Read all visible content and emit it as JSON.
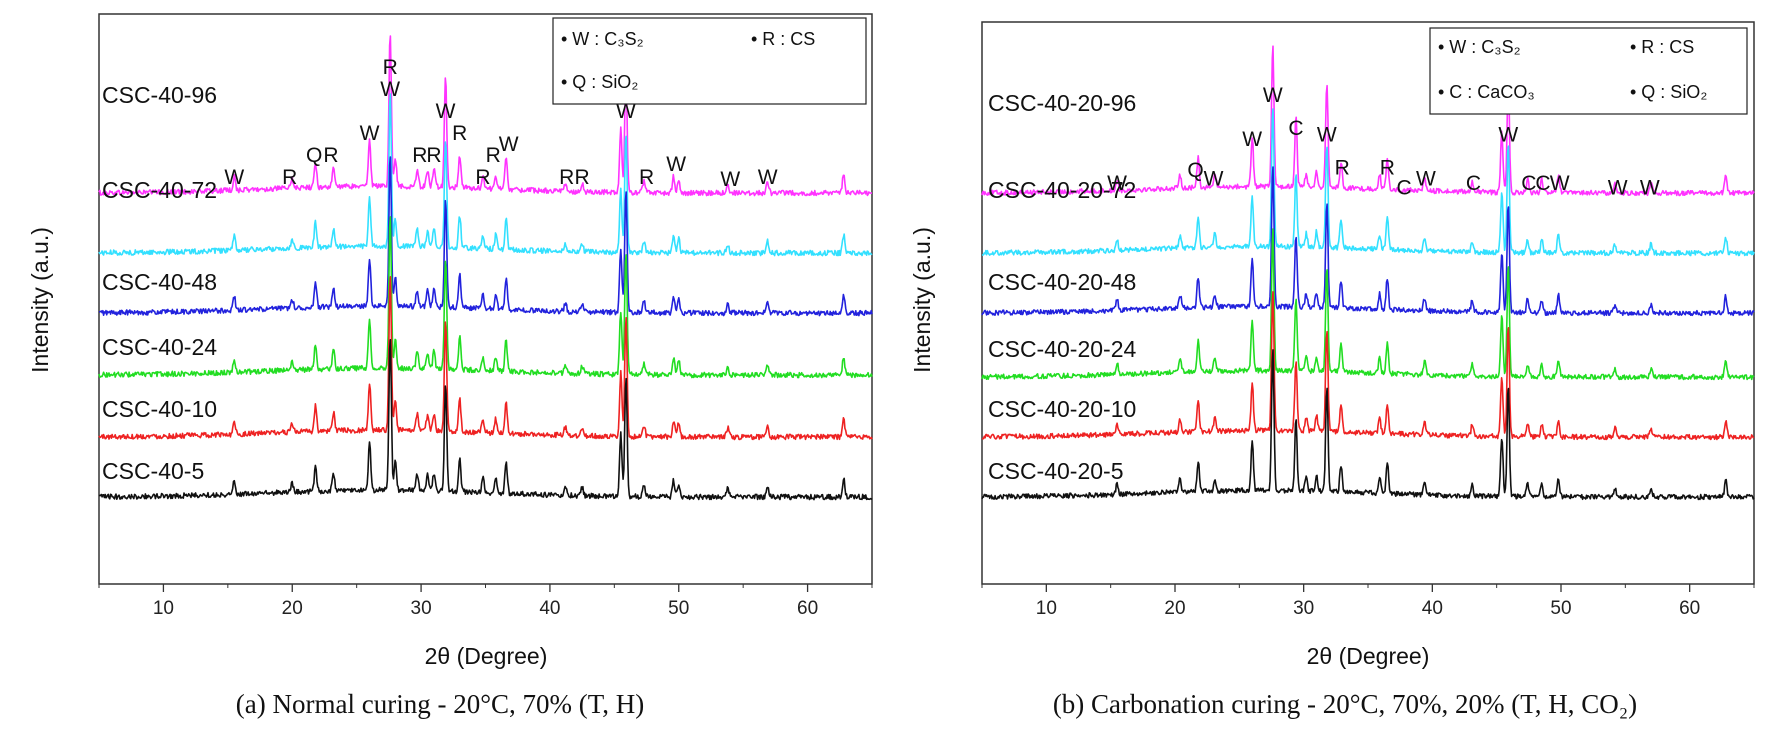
{
  "chart_data": [
    {
      "type": "line",
      "id": "a",
      "caption": "(a) Normal curing - 20°C, 70% (T, H)",
      "xlabel": "2θ (Degree)",
      "ylabel": "Intensity (a.u.)",
      "xlim": [
        5,
        65
      ],
      "xticks": [
        10,
        20,
        30,
        40,
        50,
        60
      ],
      "legend": [
        {
          "text": "• W : C₃S₂"
        },
        {
          "text": "• R : CS"
        },
        {
          "text": "• Q : SiO₂"
        }
      ],
      "series": [
        {
          "name": "CSC-40-96",
          "color": "#ff33ff",
          "baseline": 0.0,
          "peak_scale": 1.0
        },
        {
          "name": "CSC-40-72",
          "color": "#33e0ff",
          "baseline": 0.0,
          "peak_scale": 1.0
        },
        {
          "name": "CSC-40-48",
          "color": "#2222dd",
          "baseline": 0.0,
          "peak_scale": 1.0
        },
        {
          "name": "CSC-40-24",
          "color": "#22dd22",
          "baseline": 0.0,
          "peak_scale": 1.0
        },
        {
          "name": "CSC-40-10",
          "color": "#ee2222",
          "baseline": 0.0,
          "peak_scale": 1.0
        },
        {
          "name": "CSC-40-5",
          "color": "#111111",
          "baseline": 0.0,
          "peak_scale": 1.0
        }
      ],
      "peaks": [
        {
          "x": 15.5,
          "h": 0.12
        },
        {
          "x": 20.0,
          "h": 0.08
        },
        {
          "x": 21.8,
          "h": 0.22
        },
        {
          "x": 23.2,
          "h": 0.16
        },
        {
          "x": 26.0,
          "h": 0.42
        },
        {
          "x": 27.6,
          "h": 1.35
        },
        {
          "x": 28.0,
          "h": 0.25
        },
        {
          "x": 29.7,
          "h": 0.15
        },
        {
          "x": 30.5,
          "h": 0.14
        },
        {
          "x": 31.0,
          "h": 0.15
        },
        {
          "x": 31.9,
          "h": 0.95
        },
        {
          "x": 33.0,
          "h": 0.28
        },
        {
          "x": 34.8,
          "h": 0.12
        },
        {
          "x": 35.8,
          "h": 0.12
        },
        {
          "x": 36.6,
          "h": 0.28
        },
        {
          "x": 41.2,
          "h": 0.07
        },
        {
          "x": 42.5,
          "h": 0.07
        },
        {
          "x": 45.5,
          "h": 0.55
        },
        {
          "x": 45.9,
          "h": 1.05
        },
        {
          "x": 47.3,
          "h": 0.1
        },
        {
          "x": 49.6,
          "h": 0.14
        },
        {
          "x": 50.0,
          "h": 0.12
        },
        {
          "x": 53.8,
          "h": 0.08
        },
        {
          "x": 56.9,
          "h": 0.1
        },
        {
          "x": 62.8,
          "h": 0.16
        }
      ],
      "annotations": [
        {
          "x": 15.5,
          "text": "W",
          "level": 1
        },
        {
          "x": 19.8,
          "text": "R",
          "level": 1
        },
        {
          "x": 21.7,
          "text": "Q",
          "level": 2
        },
        {
          "x": 23.0,
          "text": "R",
          "level": 2
        },
        {
          "x": 26.0,
          "text": "W",
          "level": 3
        },
        {
          "x": 27.6,
          "text": "R",
          "level": 6
        },
        {
          "x": 27.6,
          "text": "W",
          "level": 5
        },
        {
          "x": 29.9,
          "text": "R",
          "level": 2
        },
        {
          "x": 31.0,
          "text": "R",
          "level": 2
        },
        {
          "x": 31.9,
          "text": "W",
          "level": 4
        },
        {
          "x": 33.0,
          "text": "R",
          "level": 3
        },
        {
          "x": 34.8,
          "text": "R",
          "level": 1
        },
        {
          "x": 35.6,
          "text": "R",
          "level": 2
        },
        {
          "x": 36.8,
          "text": "W",
          "level": 2.5
        },
        {
          "x": 41.3,
          "text": "R",
          "level": 1
        },
        {
          "x": 42.5,
          "text": "R",
          "level": 1
        },
        {
          "x": 45.9,
          "text": "W",
          "level": 4
        },
        {
          "x": 47.5,
          "text": "R",
          "level": 1
        },
        {
          "x": 49.8,
          "text": "W",
          "level": 1.6
        },
        {
          "x": 54.0,
          "text": "W",
          "level": 0.9
        },
        {
          "x": 56.9,
          "text": "W",
          "level": 1
        }
      ]
    },
    {
      "type": "line",
      "id": "b",
      "caption": "(b) Carbonation curing - 20°C, 70%, 20% (T, H, CO₂)",
      "xlabel": "2θ (Degree)",
      "ylabel": "Intensity (a.u.)",
      "xlim": [
        5,
        65
      ],
      "xticks": [
        10,
        20,
        30,
        40,
        50,
        60
      ],
      "legend": [
        {
          "text": "• W : C₃S₂"
        },
        {
          "text": "• R : CS"
        },
        {
          "text": "• C : CaCO₃"
        },
        {
          "text": "• Q : SiO₂"
        }
      ],
      "series": [
        {
          "name": "CSC-40-20-96",
          "color": "#ff33ff"
        },
        {
          "name": "CSC-40-20-72",
          "color": "#33e0ff"
        },
        {
          "name": "CSC-40-20-48",
          "color": "#2222dd"
        },
        {
          "name": "CSC-40-20-24",
          "color": "#22dd22"
        },
        {
          "name": "CSC-40-20-10",
          "color": "#ee2222"
        },
        {
          "name": "CSC-40-20-5",
          "color": "#111111"
        }
      ],
      "peaks": [
        {
          "x": 15.5,
          "h": 0.1
        },
        {
          "x": 20.4,
          "h": 0.12
        },
        {
          "x": 21.8,
          "h": 0.28
        },
        {
          "x": 23.1,
          "h": 0.12
        },
        {
          "x": 26.0,
          "h": 0.45
        },
        {
          "x": 27.6,
          "h": 1.3
        },
        {
          "x": 29.4,
          "h": 0.65
        },
        {
          "x": 30.2,
          "h": 0.12
        },
        {
          "x": 31.0,
          "h": 0.14
        },
        {
          "x": 31.8,
          "h": 0.95
        },
        {
          "x": 32.9,
          "h": 0.24
        },
        {
          "x": 35.9,
          "h": 0.14
        },
        {
          "x": 36.5,
          "h": 0.28
        },
        {
          "x": 39.4,
          "h": 0.12
        },
        {
          "x": 43.1,
          "h": 0.1
        },
        {
          "x": 45.4,
          "h": 0.55
        },
        {
          "x": 45.9,
          "h": 1.0
        },
        {
          "x": 47.4,
          "h": 0.12
        },
        {
          "x": 48.5,
          "h": 0.12
        },
        {
          "x": 49.8,
          "h": 0.16
        },
        {
          "x": 54.2,
          "h": 0.08
        },
        {
          "x": 57.0,
          "h": 0.08
        },
        {
          "x": 62.8,
          "h": 0.15
        }
      ],
      "annotations": [
        {
          "x": 15.5,
          "text": "W",
          "level": 1
        },
        {
          "x": 21.6,
          "text": "Q",
          "level": 1.6
        },
        {
          "x": 23.0,
          "text": "W",
          "level": 1.2
        },
        {
          "x": 26.0,
          "text": "W",
          "level": 3
        },
        {
          "x": 27.6,
          "text": "W",
          "level": 5
        },
        {
          "x": 29.4,
          "text": "C",
          "level": 3.5
        },
        {
          "x": 31.8,
          "text": "W",
          "level": 3.2
        },
        {
          "x": 33.0,
          "text": "R",
          "level": 1.7
        },
        {
          "x": 36.5,
          "text": "R",
          "level": 1.7
        },
        {
          "x": 37.8,
          "text": "C",
          "level": 0.8
        },
        {
          "x": 39.5,
          "text": "W",
          "level": 1.2
        },
        {
          "x": 43.2,
          "text": "C",
          "level": 1.0
        },
        {
          "x": 45.9,
          "text": "W",
          "level": 3.2
        },
        {
          "x": 47.5,
          "text": "C",
          "level": 1.0
        },
        {
          "x": 48.6,
          "text": "C",
          "level": 1.0
        },
        {
          "x": 49.9,
          "text": "W",
          "level": 1.0
        },
        {
          "x": 54.4,
          "text": "W",
          "level": 0.8
        },
        {
          "x": 56.9,
          "text": "W",
          "level": 0.8
        }
      ]
    }
  ]
}
